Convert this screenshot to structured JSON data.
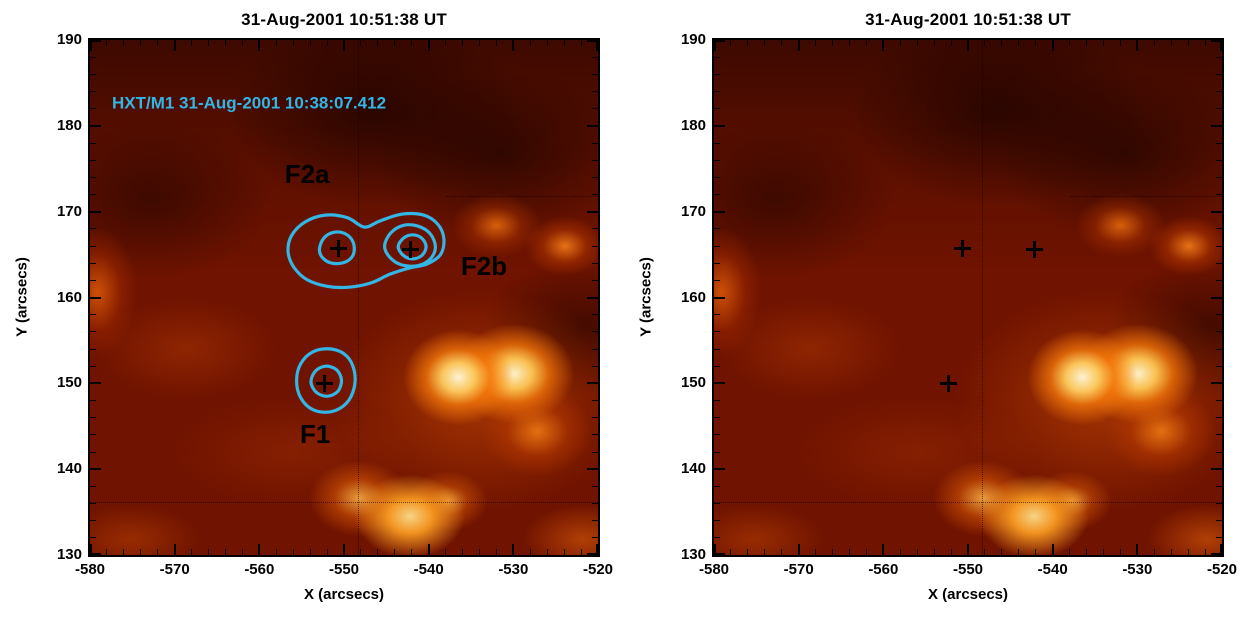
{
  "chart_data": [
    {
      "type": "heatmap",
      "title": "31-Aug-2001 10:51:38 UT",
      "xlabel": "X (arcsecs)",
      "ylabel": "Y (arcsecs)",
      "xlim": [
        -580,
        -520
      ],
      "ylim": [
        130,
        190
      ],
      "x_major_ticks": [
        -580,
        -570,
        -560,
        -550,
        -540,
        -530,
        -520
      ],
      "y_major_ticks": [
        130,
        140,
        150,
        160,
        170,
        180,
        190
      ],
      "minor_tick_step": 2,
      "marker_symbol": "+",
      "marker_color": "#000000",
      "markers": [
        {
          "x": -550.6,
          "y": 165.7
        },
        {
          "x": -542.1,
          "y": 165.6
        },
        {
          "x": -552.3,
          "y": 150.0
        }
      ],
      "contour_color": "#33b5e5",
      "contours": [
        {
          "name": "F2-outer",
          "points": [
            [
              -556.6,
              165.3
            ],
            [
              -556.2,
              167.2
            ],
            [
              -554.6,
              168.8
            ],
            [
              -552.2,
              169.6
            ],
            [
              -549.6,
              169.3
            ],
            [
              -547.6,
              168.2
            ],
            [
              -545.8,
              168.9
            ],
            [
              -543.2,
              169.7
            ],
            [
              -540.6,
              169.6
            ],
            [
              -538.9,
              168.5
            ],
            [
              -538.2,
              166.8
            ],
            [
              -538.6,
              165.0
            ],
            [
              -540.2,
              163.9
            ],
            [
              -542.4,
              163.4
            ],
            [
              -544.6,
              162.7
            ],
            [
              -546.8,
              161.7
            ],
            [
              -549.4,
              161.2
            ],
            [
              -552.0,
              161.3
            ],
            [
              -554.4,
              162.1
            ],
            [
              -555.9,
              163.5
            ]
          ]
        },
        {
          "name": "F2a-inner",
          "points": [
            [
              -552.9,
              165.6
            ],
            [
              -552.4,
              166.9
            ],
            [
              -551.2,
              167.6
            ],
            [
              -549.8,
              167.4
            ],
            [
              -548.9,
              166.4
            ],
            [
              -548.9,
              165.0
            ],
            [
              -549.9,
              164.1
            ],
            [
              -551.4,
              164.0
            ],
            [
              -552.5,
              164.6
            ]
          ]
        },
        {
          "name": "F2b-mid",
          "points": [
            [
              -545.2,
              166.0
            ],
            [
              -544.5,
              167.5
            ],
            [
              -543.0,
              168.4
            ],
            [
              -541.2,
              168.3
            ],
            [
              -539.8,
              167.4
            ],
            [
              -539.2,
              165.9
            ],
            [
              -539.8,
              164.5
            ],
            [
              -541.3,
              163.7
            ],
            [
              -543.2,
              163.8
            ],
            [
              -544.6,
              164.7
            ]
          ]
        },
        {
          "name": "F2b-inner",
          "points": [
            [
              -543.6,
              165.9
            ],
            [
              -543.0,
              166.9
            ],
            [
              -541.9,
              167.3
            ],
            [
              -540.8,
              166.9
            ],
            [
              -540.3,
              165.9
            ],
            [
              -540.8,
              164.9
            ],
            [
              -541.9,
              164.5
            ],
            [
              -543.0,
              164.9
            ]
          ]
        },
        {
          "name": "F1-outer",
          "points": [
            [
              -555.6,
              150.3
            ],
            [
              -555.1,
              152.3
            ],
            [
              -553.6,
              153.7
            ],
            [
              -551.5,
              154.0
            ],
            [
              -549.7,
              153.2
            ],
            [
              -548.8,
              151.5
            ],
            [
              -548.8,
              149.5
            ],
            [
              -549.7,
              147.7
            ],
            [
              -551.5,
              146.7
            ],
            [
              -553.6,
              146.9
            ],
            [
              -555.1,
              148.3
            ]
          ]
        },
        {
          "name": "F1-inner",
          "points": [
            [
              -553.9,
              150.1
            ],
            [
              -553.4,
              151.4
            ],
            [
              -552.2,
              152.0
            ],
            [
              -550.9,
              151.6
            ],
            [
              -550.3,
              150.4
            ],
            [
              -550.7,
              149.1
            ],
            [
              -551.9,
              148.5
            ],
            [
              -553.2,
              148.9
            ]
          ]
        }
      ],
      "annotations": [
        {
          "text": "F2a",
          "x": -557.0,
          "y": 174.3,
          "size": 26,
          "color": "#000000"
        },
        {
          "text": "F2b",
          "x": -536.2,
          "y": 163.6,
          "size": 26,
          "color": "#000000"
        },
        {
          "text": "F1",
          "x": -555.2,
          "y": 144.0,
          "size": 26,
          "color": "#000000"
        },
        {
          "text": "HXT/M1 31-Aug-2001 10:38:07.412",
          "x": -577.4,
          "y": 182.6,
          "size": 17,
          "color": "#33b5e5"
        }
      ],
      "grid_lines": [
        {
          "axis": "v",
          "value": -548.3
        },
        {
          "axis": "h",
          "value": 136.2
        },
        {
          "axis": "h",
          "value": 171.8,
          "from": -538,
          "to": -520
        }
      ],
      "palette_hint": [
        "#2a0200",
        "#8a1500",
        "#ff8c1a",
        "#ffffff"
      ]
    },
    {
      "type": "heatmap",
      "title": "31-Aug-2001 10:51:38 UT",
      "xlabel": "X (arcsecs)",
      "ylabel": "Y (arcsecs)",
      "xlim": [
        -580,
        -520
      ],
      "ylim": [
        130,
        190
      ],
      "x_major_ticks": [
        -580,
        -570,
        -560,
        -550,
        -540,
        -530,
        -520
      ],
      "y_major_ticks": [
        130,
        140,
        150,
        160,
        170,
        180,
        190
      ],
      "minor_tick_step": 2,
      "marker_symbol": "+",
      "marker_color": "#000000",
      "markers": [
        {
          "x": -550.6,
          "y": 165.7
        },
        {
          "x": -542.1,
          "y": 165.6
        },
        {
          "x": -552.3,
          "y": 150.0
        }
      ],
      "contours": [],
      "annotations": [],
      "grid_lines": [
        {
          "axis": "v",
          "value": -548.3
        },
        {
          "axis": "h",
          "value": 136.2
        },
        {
          "axis": "h",
          "value": 171.8,
          "from": -538,
          "to": -520
        }
      ],
      "palette_hint": [
        "#2a0200",
        "#8a1500",
        "#ff8c1a",
        "#ffffff"
      ]
    }
  ]
}
